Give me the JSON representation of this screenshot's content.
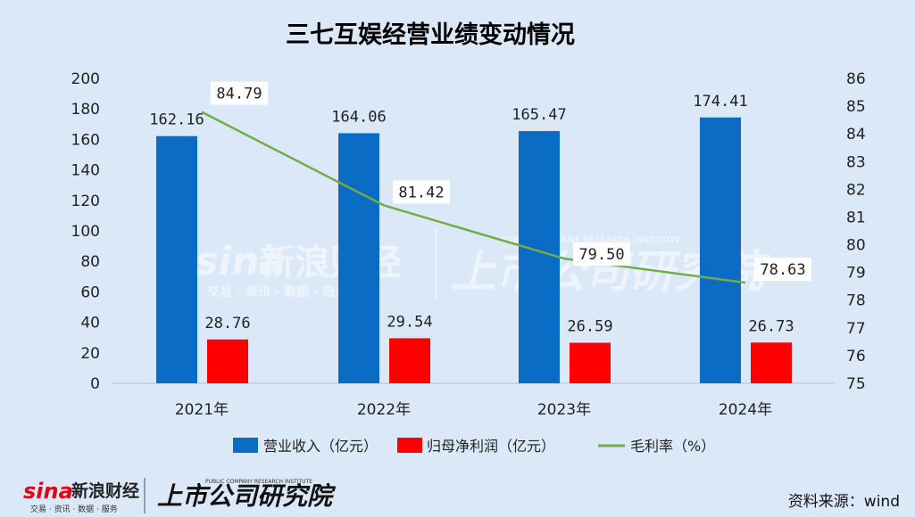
{
  "chart_data": {
    "type": "bar",
    "title": "三七互娱经营业绩变动情况",
    "categories": [
      "2021年",
      "2022年",
      "2023年",
      "2024年"
    ],
    "series": [
      {
        "name": "营业收入（亿元）",
        "kind": "bar",
        "axis": "left",
        "color": "#0a6cc4",
        "values": [
          162.16,
          164.06,
          165.47,
          174.41
        ]
      },
      {
        "name": "归母净利润（亿元）",
        "kind": "bar",
        "axis": "left",
        "color": "#ff0000",
        "values": [
          28.76,
          29.54,
          26.59,
          26.73
        ]
      },
      {
        "name": "毛利率（%）",
        "kind": "line",
        "axis": "right",
        "color": "#70ad47",
        "values": [
          84.79,
          81.42,
          79.5,
          78.63
        ]
      }
    ],
    "value_labels": {
      "revenue": [
        "162.16",
        "164.06",
        "165.47",
        "174.41"
      ],
      "profit": [
        "28.76",
        "29.54",
        "26.59",
        "26.73"
      ],
      "margin": [
        "84.79",
        "81.42",
        "79.50",
        "78.63"
      ]
    },
    "ylim_left": [
      0,
      200
    ],
    "yticks_left": [
      "0",
      "20",
      "40",
      "60",
      "80",
      "100",
      "120",
      "140",
      "160",
      "180",
      "200"
    ],
    "ylim_right": [
      75,
      86
    ],
    "yticks_right": [
      "75",
      "76",
      "77",
      "78",
      "79",
      "80",
      "81",
      "82",
      "83",
      "84",
      "85",
      "86"
    ],
    "legend_position": "bottom",
    "grid": false
  },
  "branding": {
    "logo_sina": "sina",
    "logo_sina_cn": "新浪财经",
    "logo_sina_sub": "交易 · 资讯 · 数据 · 服务",
    "logo_research_cn": "上市公司研究院",
    "logo_research_en": "PUBLIC COMPANY RESEARCH INSTITUTE"
  },
  "source": "资料来源：wind"
}
